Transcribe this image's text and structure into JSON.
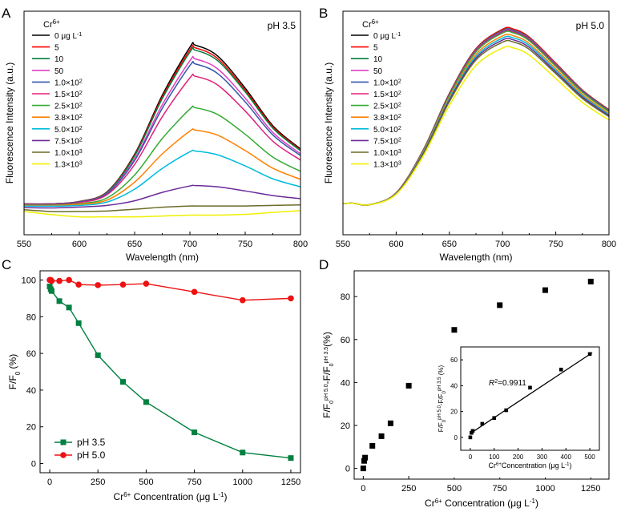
{
  "chart_data": [
    {
      "panel": "A",
      "type": "line",
      "annotation": "pH 3.5",
      "xlabel": "Wavelength (nm)",
      "ylabel": "Fluorescence Intensity (a.u.)",
      "xlim": [
        550,
        800
      ],
      "xticks": [
        "550",
        "600",
        "650",
        "700",
        "750",
        "800"
      ],
      "legend_title": "Cr6+",
      "legend_position": "top-left",
      "x": [
        550,
        575,
        600,
        625,
        650,
        675,
        700,
        705,
        725,
        750,
        775,
        800
      ],
      "series": [
        {
          "name": "0 μg L-1",
          "color": "#000000",
          "values": [
            2.3,
            2.3,
            3.6,
            9.0,
            30.0,
            63.0,
            89.9,
            91.0,
            85.0,
            67.0,
            46.0,
            33.0
          ]
        },
        {
          "name": "5",
          "color": "#ff0000",
          "values": [
            2.3,
            2.3,
            3.6,
            8.9,
            29.5,
            62.0,
            88.4,
            89.5,
            83.6,
            65.9,
            45.3,
            32.5
          ]
        },
        {
          "name": "10",
          "color": "#008040",
          "values": [
            2.3,
            2.3,
            3.5,
            8.7,
            29.0,
            61.1,
            87.1,
            88.2,
            82.4,
            64.9,
            44.6,
            32.0
          ]
        },
        {
          "name": "50",
          "color": "#e040c0",
          "values": [
            2.2,
            2.2,
            3.4,
            8.2,
            27.4,
            57.7,
            82.3,
            83.3,
            77.8,
            61.4,
            42.2,
            30.3
          ]
        },
        {
          "name": "1.0×10²",
          "color": "#3355aa",
          "values": [
            2.1,
            2.2,
            3.3,
            8.0,
            26.5,
            55.7,
            79.6,
            80.5,
            75.2,
            59.3,
            40.8,
            29.3
          ]
        },
        {
          "name": "1.5×10²",
          "color": "#e0207a",
          "values": [
            2.0,
            2.0,
            3.0,
            7.4,
            24.3,
            51.0,
            72.7,
            73.6,
            68.8,
            54.2,
            37.3,
            26.8
          ]
        },
        {
          "name": "2.5×10²",
          "color": "#33aa33",
          "values": [
            1.6,
            1.6,
            2.4,
            5.6,
            18.4,
            38.8,
            55.3,
            56.0,
            52.3,
            41.2,
            28.4,
            20.5
          ]
        },
        {
          "name": "3.8×10²",
          "color": "#ff8000",
          "values": [
            1.3,
            1.3,
            2.0,
            4.4,
            14.4,
            30.2,
            43.0,
            43.5,
            40.7,
            32.1,
            22.2,
            16.0
          ]
        },
        {
          "name": "5.0×10²",
          "color": "#00bbdd",
          "values": [
            1.0,
            1.0,
            1.4,
            3.3,
            10.5,
            22.1,
            31.4,
            31.8,
            29.7,
            23.5,
            16.3,
            11.8
          ]
        },
        {
          "name": "7.5×10²",
          "color": "#6a2a9a",
          "values": [
            0.2,
            0.0,
            0.5,
            1.4,
            4.0,
            8.7,
            12.3,
            12.5,
            11.8,
            9.5,
            6.9,
            5.2
          ]
        },
        {
          "name": "1.0×10³",
          "color": "#6b6b2a",
          "values": [
            -1.0,
            -2.0,
            -2.0,
            -1.7,
            -0.7,
            0.4,
            1.1,
            1.1,
            1.1,
            1.1,
            1.4,
            1.7
          ]
        },
        {
          "name": "1.3×10³",
          "color": "#f0f000",
          "values": [
            -2.0,
            -3.7,
            -5.0,
            -5.0,
            -5.0,
            -4.5,
            -4.0,
            -4.0,
            -4.0,
            -3.6,
            -2.5,
            -1.5
          ]
        }
      ]
    },
    {
      "panel": "B",
      "type": "line",
      "annotation": "pH 5.0",
      "xlabel": "Wavelength (nm)",
      "ylabel": "Fluorescence Intensity (a.u.)",
      "xlim": [
        550,
        800
      ],
      "xticks": [
        "550",
        "600",
        "650",
        "700",
        "750",
        "800"
      ],
      "legend_title": "Cr6+",
      "legend_position": "top-left",
      "x": [
        550,
        560,
        575,
        600,
        625,
        650,
        675,
        700,
        710,
        725,
        750,
        775,
        800
      ],
      "series": [
        {
          "name": "0 μg L-1",
          "color": "#000000",
          "values": [
            2.5,
            2.6,
            1.8,
            8.4,
            31.9,
            64.0,
            89.0,
            99.9,
            100.0,
            95.5,
            80.9,
            65.9,
            54.9
          ]
        },
        {
          "name": "5",
          "color": "#ff0000",
          "values": [
            2.5,
            2.6,
            1.8,
            8.4,
            31.9,
            64.0,
            89.0,
            99.9,
            100.0,
            95.5,
            80.9,
            65.9,
            54.9
          ]
        },
        {
          "name": "10",
          "color": "#008040",
          "values": [
            2.5,
            2.6,
            1.8,
            8.3,
            31.7,
            63.7,
            88.6,
            99.3,
            99.4,
            95.0,
            80.4,
            65.6,
            54.6
          ]
        },
        {
          "name": "50",
          "color": "#e040c0",
          "values": [
            2.5,
            2.6,
            1.8,
            8.3,
            31.6,
            63.5,
            88.3,
            99.0,
            99.1,
            94.7,
            80.2,
            65.4,
            54.4
          ]
        },
        {
          "name": "1.0×10²",
          "color": "#3355aa",
          "values": [
            2.5,
            2.6,
            1.8,
            8.3,
            31.5,
            63.3,
            88.0,
            98.7,
            98.8,
            94.4,
            79.9,
            65.2,
            54.3
          ]
        },
        {
          "name": "1.5×10²",
          "color": "#e0207a",
          "values": [
            2.5,
            2.6,
            1.8,
            8.3,
            31.4,
            63.0,
            87.7,
            98.3,
            98.4,
            94.0,
            79.6,
            64.9,
            54.0
          ]
        },
        {
          "name": "2.5×10²",
          "color": "#33aa33",
          "values": [
            2.5,
            2.6,
            1.8,
            8.2,
            31.2,
            62.7,
            87.2,
            97.8,
            97.9,
            93.5,
            79.2,
            64.6,
            53.8
          ]
        },
        {
          "name": "3.8×10²",
          "color": "#ff8000",
          "values": [
            2.5,
            2.6,
            1.8,
            8.1,
            30.7,
            61.7,
            85.8,
            96.2,
            96.3,
            92.0,
            77.9,
            63.5,
            52.9
          ]
        },
        {
          "name": "5.0×10²",
          "color": "#00bbdd",
          "values": [
            2.5,
            2.6,
            1.8,
            8.0,
            30.3,
            60.9,
            84.7,
            95.0,
            95.1,
            90.9,
            76.9,
            62.7,
            52.2
          ]
        },
        {
          "name": "7.5×10²",
          "color": "#6a2a9a",
          "values": [
            2.5,
            2.6,
            1.8,
            7.9,
            30.0,
            60.2,
            83.7,
            93.9,
            94.0,
            89.8,
            76.0,
            62.0,
            51.6
          ]
        },
        {
          "name": "1.0×10³",
          "color": "#6b6b2a",
          "values": [
            2.5,
            2.6,
            1.8,
            7.8,
            29.6,
            59.4,
            82.7,
            92.7,
            92.8,
            88.7,
            75.1,
            61.2,
            51.0
          ]
        },
        {
          "name": "1.3×10³",
          "color": "#f0f000",
          "values": [
            2.5,
            2.6,
            1.8,
            7.6,
            28.6,
            57.3,
            79.7,
            89.4,
            89.5,
            85.5,
            72.4,
            59.0,
            49.1
          ]
        }
      ]
    },
    {
      "panel": "C",
      "type": "line",
      "xlabel": "Cr6+ Concentration (μg L-1)",
      "ylabel": "F/F0 (%)",
      "xlim": [
        -50,
        1300
      ],
      "ylim": [
        -5,
        105
      ],
      "xticks": [
        0,
        250,
        500,
        750,
        1000,
        1250
      ],
      "yticks": [
        0,
        20,
        40,
        60,
        80,
        100
      ],
      "legend_position": "bottom-left",
      "x": [
        0,
        5,
        10,
        50,
        100,
        150,
        250,
        380,
        500,
        750,
        1000,
        1250
      ],
      "series": [
        {
          "name": "pH 3.5",
          "color": "#008040",
          "marker": "square",
          "values": [
            96.5,
            95.0,
            94.0,
            88.5,
            85.0,
            76.5,
            59.0,
            44.5,
            33.5,
            17.0,
            6.0,
            3.0
          ]
        },
        {
          "name": "pH 5.0",
          "color": "#ee1111",
          "marker": "circle",
          "values": [
            100.0,
            100.0,
            99.5,
            99.5,
            100.0,
            97.5,
            97.2,
            97.5,
            98.0,
            93.5,
            89.0,
            90.0
          ]
        }
      ]
    },
    {
      "panel": "D",
      "type": "scatter",
      "xlabel": "Cr6+ Concentration (μg L-1)",
      "ylabel": "F/F0pH5.0-F/F0pH3.5 (%)",
      "xlim": [
        -50,
        1350
      ],
      "ylim": [
        -5,
        92
      ],
      "xticks": [
        0,
        250,
        500,
        750,
        1000,
        1250
      ],
      "yticks": [
        0,
        20,
        40,
        60,
        80
      ],
      "x": [
        0,
        5,
        10,
        50,
        100,
        150,
        250,
        380,
        500,
        750,
        1000,
        1250
      ],
      "values": [
        0,
        3.5,
        5.0,
        10.5,
        15.0,
        21.0,
        38.5,
        52.5,
        64.5,
        76.0,
        83.0,
        87.0
      ],
      "inset": {
        "type": "scatter",
        "xlabel": "Cr6+ Concentration (μg L-1)",
        "ylabel": "F/F0pH5.0-F/F0pH3.5 (%)",
        "annotation": "R2=0.9911",
        "xlim": [
          -40,
          540
        ],
        "ylim": [
          -10,
          70
        ],
        "xticks": [
          0,
          100,
          200,
          300,
          400,
          500
        ],
        "yticks": [
          0,
          20,
          40,
          60
        ],
        "x": [
          0,
          5,
          10,
          50,
          100,
          150,
          250,
          380,
          500
        ],
        "values": [
          0,
          3.5,
          5.0,
          10.5,
          15.0,
          21.0,
          38.5,
          52.5,
          64.5
        ],
        "fit": {
          "x": [
            0,
            510
          ],
          "y": [
            3.0,
            65.5
          ]
        }
      }
    }
  ]
}
